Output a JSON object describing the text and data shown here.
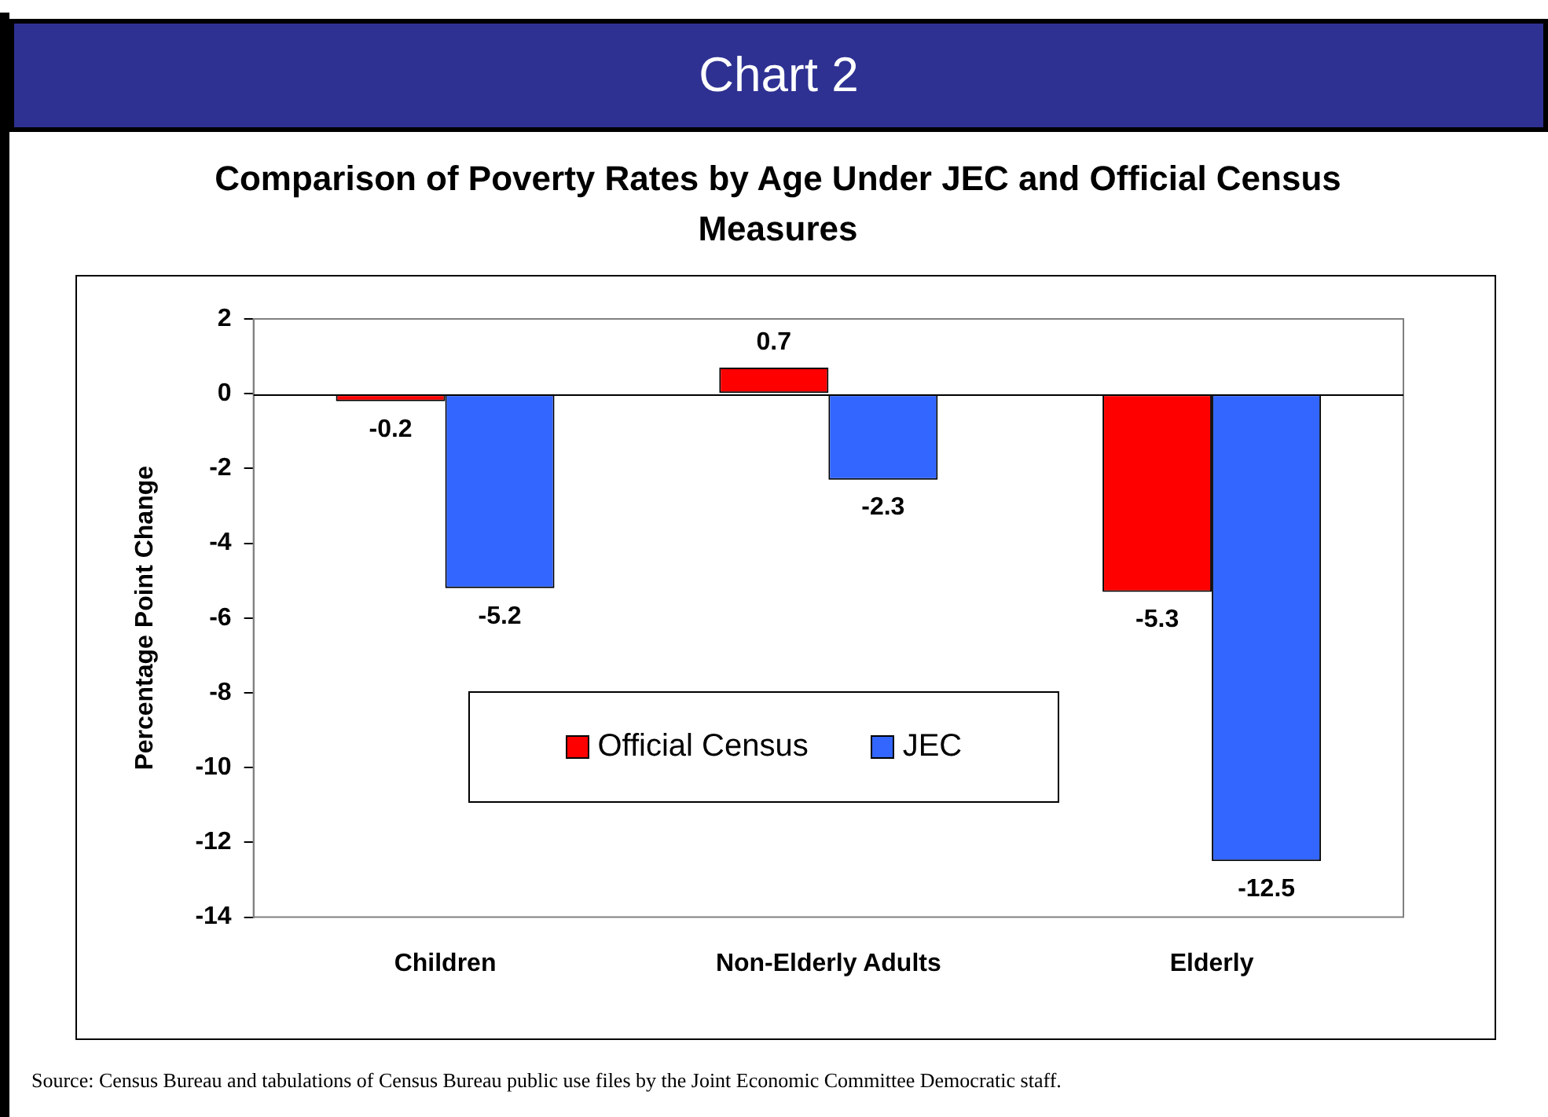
{
  "chart_data": {
    "type": "bar",
    "title": "Comparison of Poverty Rates by Age Under JEC and Official Census Measures",
    "ylabel": "Percentage Point Change",
    "categories": [
      "Children",
      "Non-Elderly Adults",
      "Elderly"
    ],
    "series": [
      {
        "name": "Official Census",
        "color": "#ff0000",
        "values": [
          -0.2,
          0.7,
          -5.3
        ]
      },
      {
        "name": "JEC",
        "color": "#3366ff",
        "values": [
          -5.2,
          -2.3,
          -12.5
        ]
      }
    ],
    "ylim": [
      -14,
      2
    ],
    "yticks": [
      -14,
      -12,
      -10,
      -8,
      -6,
      -4,
      -2,
      0,
      2
    ],
    "grid": false,
    "ref_lines": [
      {
        "axis": "y",
        "value": 0
      }
    ],
    "legend": "bottom",
    "data_labels": true,
    "annotations": [
      "Chart 2",
      "Source: Census Bureau and tabulations of Census Bureau public use files by the Joint Economic Committee Democratic staff."
    ]
  }
}
